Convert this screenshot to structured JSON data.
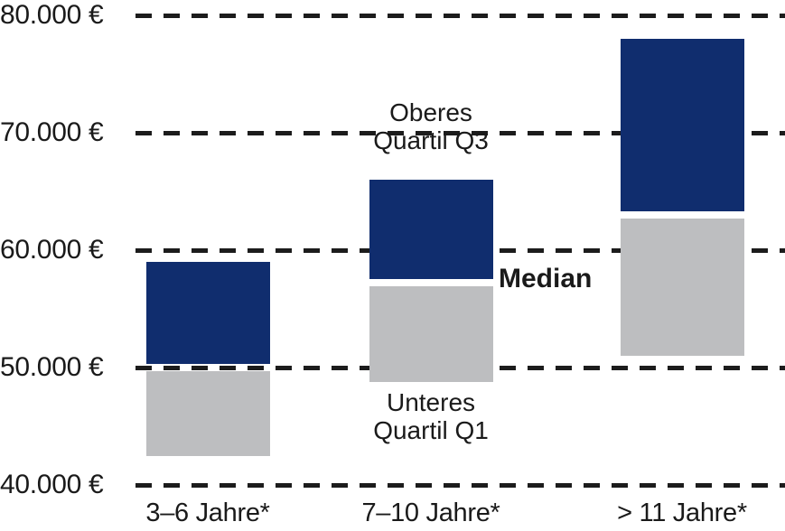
{
  "chart_data": {
    "type": "bar",
    "variant": "floating-quartile-columns",
    "title": "",
    "unit": "€",
    "legend_position": "none",
    "grid": "dashed-horizontal",
    "y_axis": {
      "min": 40000,
      "max": 80000,
      "tick_step": 10000,
      "ticks": [
        {
          "value": 80000,
          "label": "80.000 €"
        },
        {
          "value": 70000,
          "label": "70.000 €"
        },
        {
          "value": 60000,
          "label": "60.000 €"
        },
        {
          "value": 50000,
          "label": "50.000 €"
        },
        {
          "value": 40000,
          "label": "40.000 €"
        }
      ]
    },
    "categories": [
      "3–6 Jahre*",
      "7–10 Jahre*",
      "> 11 Jahre*"
    ],
    "series": [
      {
        "name": "Unteres Quartil Q1 bis Median",
        "role": "q1-to-median",
        "color": "#bdbec0"
      },
      {
        "name": "Median bis Oberes Quartil Q3",
        "role": "median-to-q3",
        "color": "#102d6e"
      }
    ],
    "groups": [
      {
        "label": "3–6 Jahre*",
        "q1": 42500,
        "median": 50000,
        "q3": 59000
      },
      {
        "label": "7–10 Jahre*",
        "q1": 48750,
        "median": 57250,
        "q3": 66000
      },
      {
        "label": "> 11 Jahre*",
        "q1": 51000,
        "median": 63000,
        "q3": 78000
      }
    ],
    "annotations": [
      {
        "id": "q3-label",
        "line1": "Oberes",
        "line2": "Quartil Q3"
      },
      {
        "id": "median-label",
        "text": "Median"
      },
      {
        "id": "q1-label",
        "line1": "Unteres",
        "line2": "Quartil Q1"
      }
    ]
  },
  "colors": {
    "background": "#ffffff",
    "text": "#1a1a1a",
    "gridline": "#1c1c1c",
    "upper_quartile_bar": "#102d6e",
    "lower_quartile_bar": "#bdbec0"
  }
}
